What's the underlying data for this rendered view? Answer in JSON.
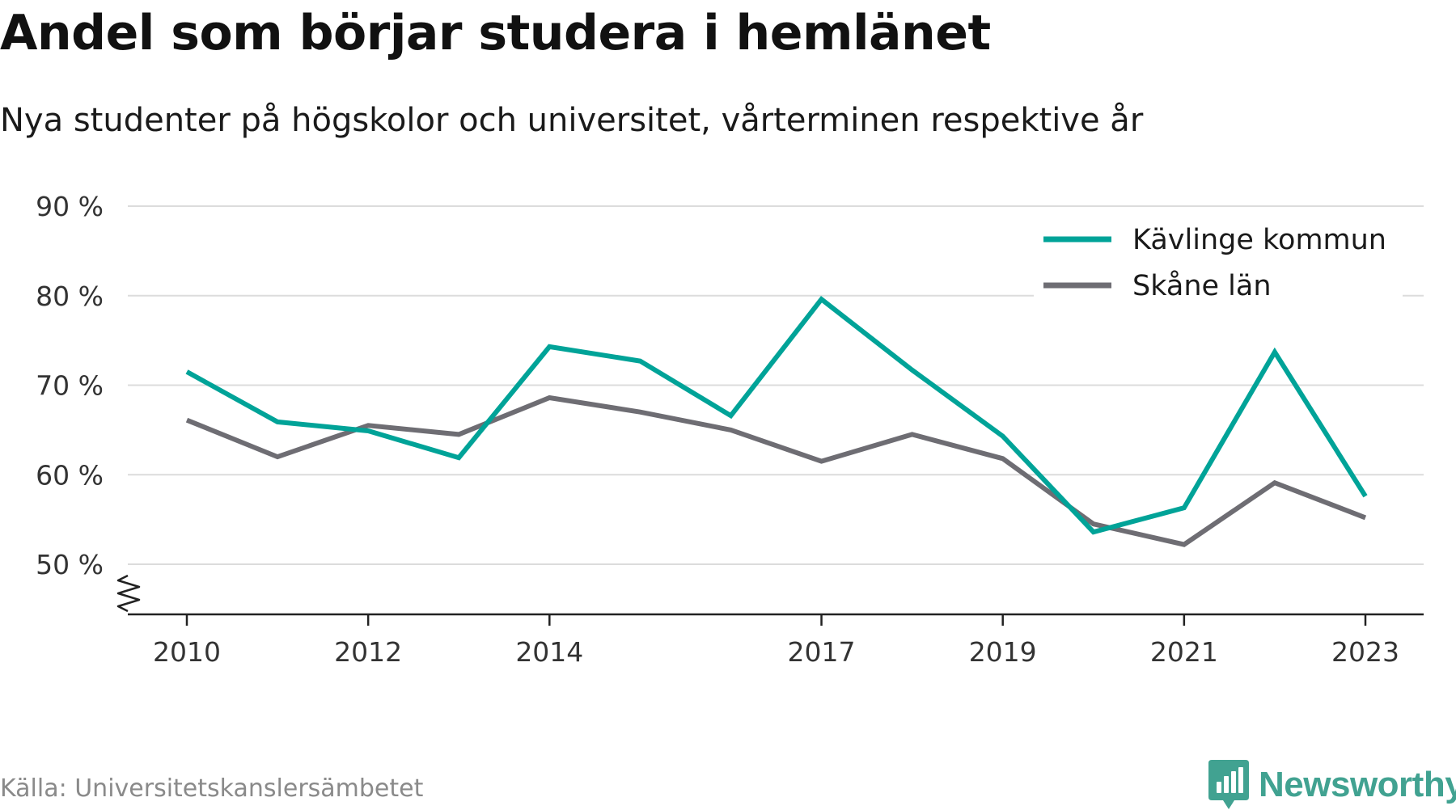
{
  "header": {
    "title": "Andel som börjar studera i hemlänet",
    "subtitle": "Nya studenter på högskolor och universitet, vårterminen respektive år"
  },
  "footer": {
    "source": "Källa: Universitetskanslersämbetet",
    "brand": "Newsworthy",
    "brand_color": "#41a291"
  },
  "chart_data": {
    "type": "line",
    "title": "Andel som börjar studera i hemlänet",
    "subtitle": "Nya studenter på högskolor och universitet, vårterminen respektive år",
    "x": [
      2010,
      2011,
      2012,
      2013,
      2014,
      2015,
      2016,
      2017,
      2018,
      2019,
      2020,
      2021,
      2022,
      2023
    ],
    "x_ticks": [
      "2010",
      "2012",
      "2014",
      "2017",
      "2019",
      "2021",
      "2023"
    ],
    "y_ticks": [
      "50 %",
      "60 %",
      "70 %",
      "80 %",
      "90 %"
    ],
    "ylim": [
      44,
      90
    ],
    "yaxis_break": true,
    "grid": true,
    "legend_position": "top-right",
    "series": [
      {
        "name": "Kävlinge kommun",
        "color": "#00a398",
        "values": [
          71.5,
          65.9,
          64.9,
          61.9,
          74.3,
          72.7,
          66.6,
          79.6,
          71.7,
          64.3,
          53.6,
          56.3,
          73.7,
          57.6
        ]
      },
      {
        "name": "Skåne län",
        "color": "#6e6d73",
        "values": [
          66.1,
          62.0,
          65.5,
          64.5,
          68.6,
          67.0,
          65.0,
          61.5,
          64.5,
          61.8,
          54.5,
          52.2,
          59.1,
          55.2
        ]
      }
    ]
  }
}
